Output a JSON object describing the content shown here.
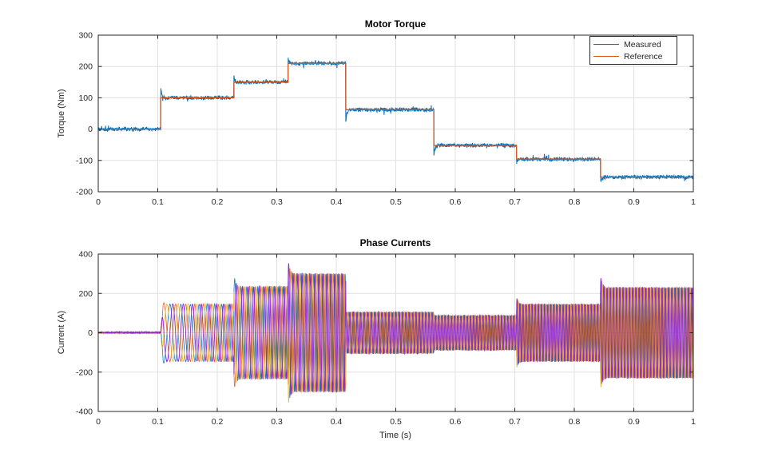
{
  "figure": {
    "background": "#FFFFFF"
  },
  "style": {
    "axis_color": "#262626",
    "grid_color": "#E0E0E0",
    "tick_label_color": "#262626",
    "title_color": "#000000",
    "legend_border_color": "#262626",
    "legend_background": "#FFFFFF"
  },
  "chart_data": [
    {
      "type": "line",
      "title": "Motor Torque",
      "ylabel": "Torque (Nm)",
      "xlabel": "",
      "xlim": [
        0,
        1
      ],
      "ylim": [
        -200,
        300
      ],
      "xticks": [
        0,
        0.1,
        0.2,
        0.3,
        0.4,
        0.5,
        0.6,
        0.7,
        0.8,
        0.9,
        1
      ],
      "yticks": [
        -200,
        -100,
        0,
        100,
        200,
        300
      ],
      "grid": true,
      "legend": {
        "position": "northeast",
        "entries": [
          {
            "label": "Measured",
            "color": "#0072BD"
          },
          {
            "label": "Reference",
            "color": "#D95319"
          }
        ]
      },
      "series": [
        {
          "name": "Measured",
          "color": "#0072BD",
          "style": "steps-with-noise",
          "noise_nm": 7
        },
        {
          "name": "Reference",
          "color": "#D95319",
          "style": "steps"
        }
      ],
      "step_times": [
        0,
        0.105,
        0.228,
        0.319,
        0.416,
        0.564,
        0.703,
        0.844,
        1
      ],
      "step_values": [
        0,
        100,
        150,
        210,
        62,
        -52,
        -96,
        -153
      ]
    },
    {
      "type": "line",
      "title": "Phase Currents",
      "ylabel": "Current (A)",
      "xlabel": "Time (s)",
      "xlim": [
        0,
        1
      ],
      "ylim": [
        -400,
        400
      ],
      "xticks": [
        0,
        0.1,
        0.2,
        0.3,
        0.4,
        0.5,
        0.6,
        0.7,
        0.8,
        0.9,
        1
      ],
      "yticks": [
        -400,
        -200,
        0,
        200,
        400
      ],
      "grid": true,
      "series": [
        {
          "name": "phase-blue",
          "color": "#0072BD",
          "phase_deg": 180
        },
        {
          "name": "phase-orange",
          "color": "#D95319",
          "phase_deg": 0
        },
        {
          "name": "phase-yellow",
          "color": "#EDB120",
          "phase_deg": 270
        },
        {
          "name": "phase-purple",
          "color": "#8B27D4",
          "phase_deg": 90
        }
      ],
      "envelope_segments": [
        {
          "t": [
            0,
            0.105
          ],
          "amplitude": 2,
          "freq": [
            0,
            0
          ]
        },
        {
          "t": [
            0.105,
            0.228
          ],
          "amplitude": 145,
          "freq": [
            45,
            95
          ]
        },
        {
          "t": [
            0.228,
            0.319
          ],
          "amplitude": 235,
          "freq": [
            95,
            130
          ]
        },
        {
          "t": [
            0.319,
            0.416
          ],
          "amplitude": 300,
          "freq": [
            130,
            160
          ]
        },
        {
          "t": [
            0.416,
            0.564
          ],
          "amplitude": 105,
          "freq": [
            160,
            185
          ]
        },
        {
          "t": [
            0.564,
            0.703
          ],
          "amplitude": 88,
          "freq": [
            185,
            195
          ]
        },
        {
          "t": [
            0.703,
            0.844
          ],
          "amplitude": 145,
          "freq": [
            195,
            188
          ]
        },
        {
          "t": [
            0.844,
            1
          ],
          "amplitude": 230,
          "freq": [
            188,
            178
          ]
        }
      ],
      "noise_amplitude_a": 3
    }
  ]
}
